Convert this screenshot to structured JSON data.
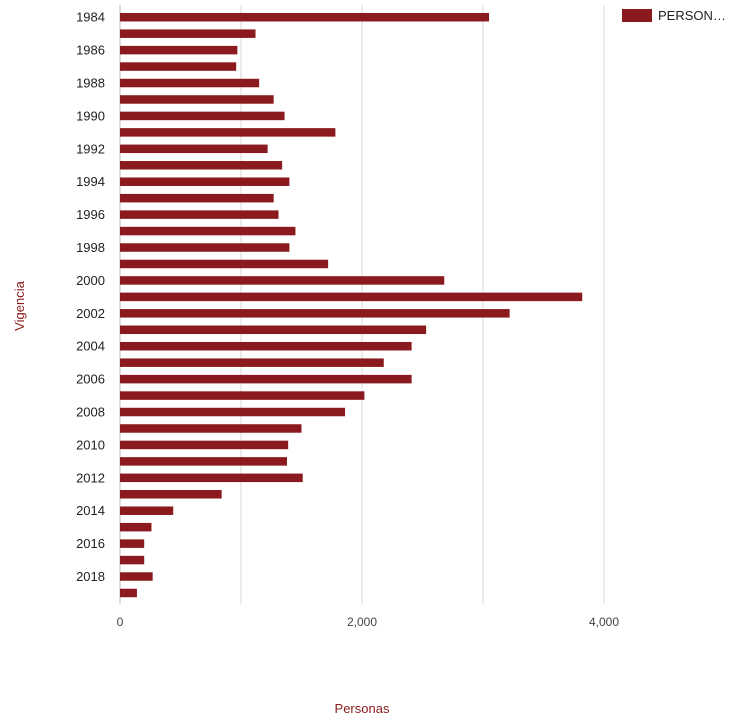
{
  "chart_data": {
    "type": "bar",
    "orientation": "horizontal",
    "categories": [
      "1984",
      "1985",
      "1986",
      "1987",
      "1988",
      "1989",
      "1990",
      "1991",
      "1992",
      "1993",
      "1994",
      "1995",
      "1996",
      "1997",
      "1998",
      "1999",
      "2000",
      "2001",
      "2002",
      "2003",
      "2004",
      "2005",
      "2006",
      "2007",
      "2008",
      "2009",
      "2010",
      "2011",
      "2012",
      "2013",
      "2014",
      "2015",
      "2016",
      "2017",
      "2018",
      "2019"
    ],
    "tick_labels": [
      "1984",
      "1986",
      "1988",
      "1990",
      "1992",
      "1994",
      "1996",
      "1998",
      "2000",
      "2002",
      "2004",
      "2006",
      "2008",
      "2010",
      "2012",
      "2014",
      "2016",
      "2018"
    ],
    "series": [
      {
        "name": "PERSON…",
        "color": "#8b1a1f",
        "values": [
          3050,
          1120,
          970,
          960,
          1150,
          1270,
          1360,
          1780,
          1220,
          1340,
          1400,
          1270,
          1310,
          1450,
          1400,
          1720,
          2680,
          3820,
          3220,
          2530,
          2410,
          2180,
          2410,
          2020,
          1860,
          1500,
          1390,
          1380,
          1510,
          840,
          440,
          260,
          200,
          200,
          270,
          140
        ]
      }
    ],
    "xlabel": "Personas",
    "ylabel": "Vigencia",
    "xlim": [
      0,
      5000
    ],
    "x_ticks": [
      0,
      2000,
      4000
    ],
    "x_tick_labels": [
      "0",
      "2,000",
      "4,000"
    ],
    "grid": true,
    "legend_position": "top-right"
  }
}
